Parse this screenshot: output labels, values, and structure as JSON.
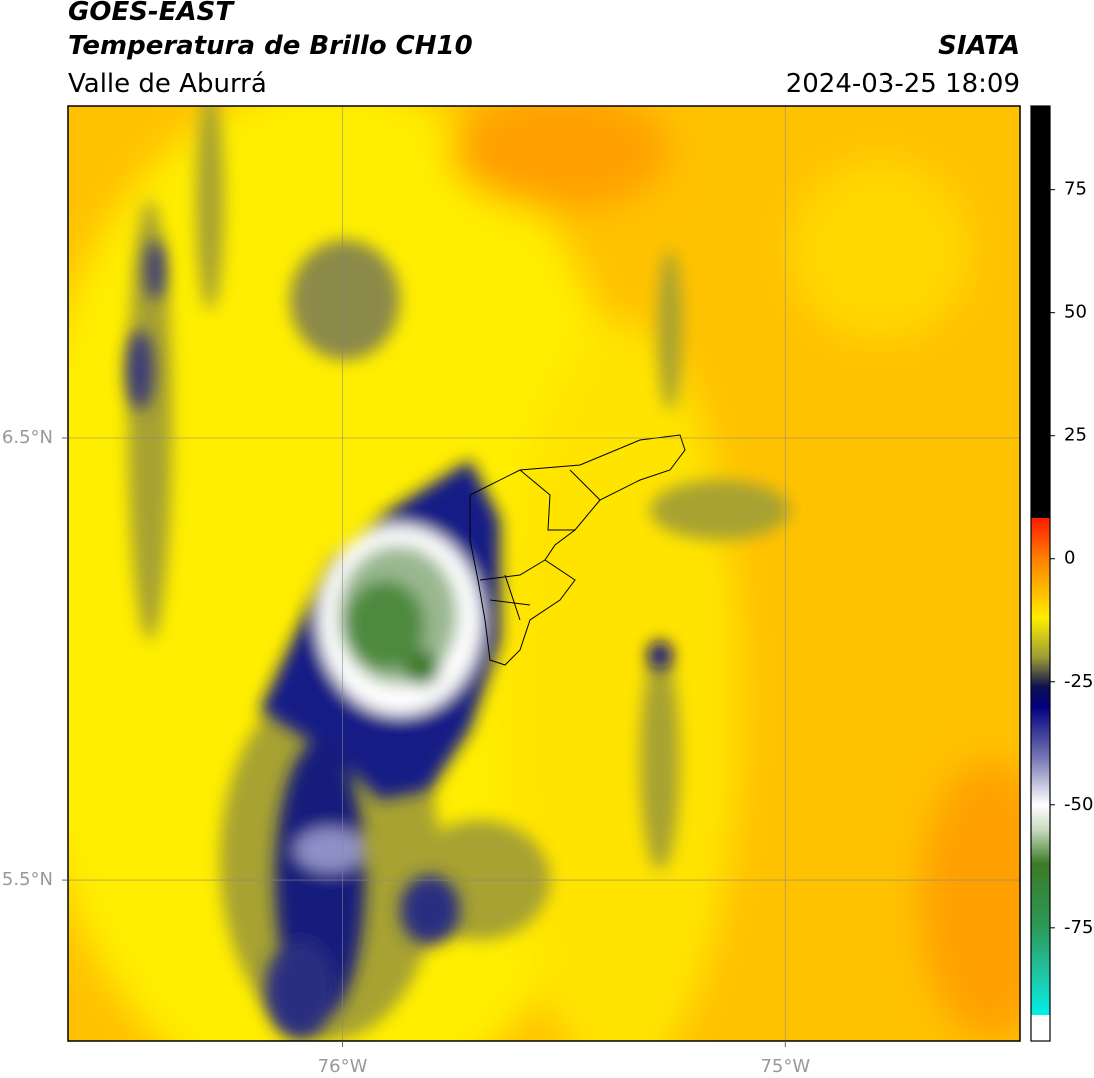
{
  "header": {
    "title": "GOES-EAST",
    "subtitle": "Temperatura de Brillo CH10",
    "region": "Valle de Aburrá",
    "source": "SIATA",
    "datetime": "2024-03-25 18:09"
  },
  "map": {
    "lon_range": [
      -76.62,
      -74.47
    ],
    "lat_range": [
      5.136,
      7.251
    ],
    "lat_lines": [
      {
        "value": 6.5,
        "label": "6.5°N"
      },
      {
        "value": 5.5,
        "label": "5.5°N"
      }
    ],
    "lon_lines": [
      {
        "value": -76,
        "label": "76°W"
      },
      {
        "value": -75,
        "label": "75°W"
      }
    ]
  },
  "colorbar": {
    "range": [
      -98,
      92
    ],
    "ticks": [
      75,
      50,
      25,
      0,
      -25,
      -50,
      -75
    ],
    "stops": [
      {
        "value": 92,
        "color": "#000000"
      },
      {
        "value": 8.3,
        "color": "#000000"
      },
      {
        "value": 8.3,
        "color": "#ff1a00"
      },
      {
        "value": 0,
        "color": "#ff8000"
      },
      {
        "value": -12,
        "color": "#ffee00"
      },
      {
        "value": -20,
        "color": "#9c9c35"
      },
      {
        "value": -26,
        "color": "#101050"
      },
      {
        "value": -30,
        "color": "#000080"
      },
      {
        "value": -40,
        "color": "#7070b0"
      },
      {
        "value": -50,
        "color": "#ffffff"
      },
      {
        "value": -55,
        "color": "#c8dcc0"
      },
      {
        "value": -62,
        "color": "#3c7a28"
      },
      {
        "value": -75,
        "color": "#2a9a5a"
      },
      {
        "value": -85,
        "color": "#20c8a8"
      },
      {
        "value": -92.7,
        "color": "#00f0e8"
      },
      {
        "value": -92.7,
        "color": "#ffffff"
      },
      {
        "value": -98,
        "color": "#ffffff"
      }
    ]
  }
}
